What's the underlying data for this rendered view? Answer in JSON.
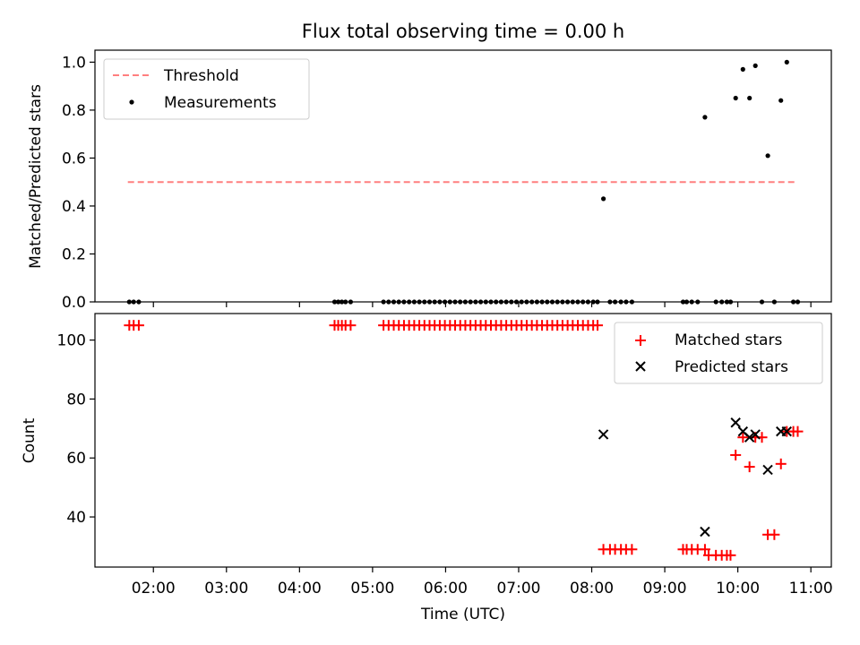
{
  "chart_data": [
    {
      "type": "scatter",
      "title": "Flux total observing time = 0.00 h",
      "xlabel": "",
      "ylabel": "Matched/Predicted stars",
      "xlim": [
        1.2,
        11.28
      ],
      "ylim": [
        0.0,
        1.05
      ],
      "x_ticks": [
        2,
        3,
        4,
        5,
        6,
        7,
        8,
        9,
        10,
        11
      ],
      "y_ticks": [
        0.0,
        0.2,
        0.4,
        0.6,
        0.8,
        1.0
      ],
      "y_tick_labels": [
        "0.0",
        "0.2",
        "0.4",
        "0.6",
        "0.8",
        "1.0"
      ],
      "legend_position": "top-left",
      "threshold": {
        "name": "Threshold",
        "value": 0.5,
        "x_range": [
          1.65,
          10.82
        ],
        "color": "#ff7f7f"
      },
      "series": [
        {
          "name": "Measurements",
          "color": "#000000",
          "marker": "dot",
          "x": [
            1.67,
            1.73,
            1.8,
            4.48,
            4.53,
            4.58,
            4.63,
            4.7,
            5.15,
            5.22,
            5.29,
            5.36,
            5.43,
            5.5,
            5.57,
            5.64,
            5.71,
            5.78,
            5.85,
            5.92,
            5.99,
            6.06,
            6.13,
            6.2,
            6.27,
            6.34,
            6.41,
            6.48,
            6.55,
            6.62,
            6.69,
            6.76,
            6.83,
            6.9,
            6.97,
            7.04,
            7.11,
            7.18,
            7.25,
            7.32,
            7.39,
            7.46,
            7.53,
            7.6,
            7.67,
            7.74,
            7.81,
            7.88,
            7.95,
            8.02,
            8.08,
            8.16,
            8.25,
            8.32,
            8.4,
            8.47,
            8.55,
            9.25,
            9.3,
            9.37,
            9.45,
            9.55,
            9.7,
            9.78,
            9.85,
            9.9,
            9.97,
            10.07,
            10.16,
            10.24,
            10.33,
            10.41,
            10.5,
            10.59,
            10.67,
            10.76,
            10.82
          ],
          "y": [
            0,
            0,
            0,
            0,
            0,
            0,
            0,
            0,
            0,
            0,
            0,
            0,
            0,
            0,
            0,
            0,
            0,
            0,
            0,
            0,
            0,
            0,
            0,
            0,
            0,
            0,
            0,
            0,
            0,
            0,
            0,
            0,
            0,
            0,
            0,
            0,
            0,
            0,
            0,
            0,
            0,
            0,
            0,
            0,
            0,
            0,
            0,
            0,
            0,
            0,
            0,
            0.43,
            0,
            0,
            0,
            0,
            0,
            0,
            0,
            0,
            0,
            0.77,
            0,
            0,
            0,
            0,
            0.85,
            0.97,
            0.85,
            0.985,
            0,
            0.61,
            0,
            0.84,
            1.0,
            0,
            0
          ]
        }
      ]
    },
    {
      "type": "scatter",
      "title": "",
      "xlabel": "Time (UTC)",
      "ylabel": "Count",
      "xlim": [
        1.2,
        11.28
      ],
      "ylim": [
        23,
        109
      ],
      "x_ticks": [
        2,
        3,
        4,
        5,
        6,
        7,
        8,
        9,
        10,
        11
      ],
      "x_tick_labels": [
        "02:00",
        "03:00",
        "04:00",
        "05:00",
        "06:00",
        "07:00",
        "08:00",
        "09:00",
        "10:00",
        "11:00"
      ],
      "y_ticks": [
        40,
        60,
        80,
        100
      ],
      "y_tick_labels": [
        "40",
        "60",
        "80",
        "100"
      ],
      "legend_position": "top-right",
      "series": [
        {
          "name": "Matched stars",
          "color": "#ff0000",
          "marker": "plus",
          "x": [
            1.67,
            1.73,
            1.8,
            4.48,
            4.53,
            4.58,
            4.63,
            4.7,
            5.15,
            5.22,
            5.29,
            5.36,
            5.43,
            5.5,
            5.57,
            5.64,
            5.71,
            5.78,
            5.85,
            5.92,
            5.99,
            6.06,
            6.13,
            6.2,
            6.27,
            6.34,
            6.41,
            6.48,
            6.55,
            6.62,
            6.69,
            6.76,
            6.83,
            6.9,
            6.97,
            7.04,
            7.11,
            7.18,
            7.25,
            7.32,
            7.39,
            7.46,
            7.53,
            7.6,
            7.67,
            7.74,
            7.81,
            7.88,
            7.95,
            8.02,
            8.08,
            8.16,
            8.25,
            8.32,
            8.4,
            8.47,
            8.55,
            9.25,
            9.3,
            9.37,
            9.45,
            9.55,
            9.6,
            9.7,
            9.78,
            9.85,
            9.9,
            9.97,
            10.07,
            10.16,
            10.24,
            10.33,
            10.41,
            10.5,
            10.59,
            10.67,
            10.76,
            10.82
          ],
          "y": [
            105,
            105,
            105,
            105,
            105,
            105,
            105,
            105,
            105,
            105,
            105,
            105,
            105,
            105,
            105,
            105,
            105,
            105,
            105,
            105,
            105,
            105,
            105,
            105,
            105,
            105,
            105,
            105,
            105,
            105,
            105,
            105,
            105,
            105,
            105,
            105,
            105,
            105,
            105,
            105,
            105,
            105,
            105,
            105,
            105,
            105,
            105,
            105,
            105,
            105,
            105,
            29,
            29,
            29,
            29,
            29,
            29,
            29,
            29,
            29,
            29,
            29,
            27,
            27,
            27,
            27,
            27,
            61,
            67,
            57,
            67,
            67,
            34,
            34,
            58,
            69,
            69,
            69
          ]
        },
        {
          "name": "Predicted stars",
          "color": "#000000",
          "marker": "x",
          "x": [
            8.16,
            9.55,
            9.97,
            10.07,
            10.16,
            10.24,
            10.41,
            10.59,
            10.67
          ],
          "y": [
            68,
            35,
            72,
            69,
            67,
            68,
            56,
            69,
            69
          ]
        }
      ]
    }
  ]
}
